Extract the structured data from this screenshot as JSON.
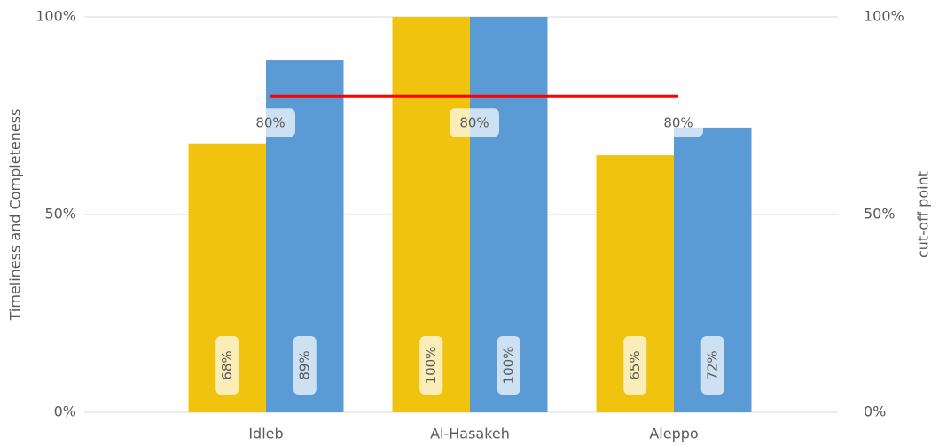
{
  "chart_data": {
    "type": "bar",
    "categories": [
      "Idleb",
      "Al-Hasakeh",
      "Aleppo"
    ],
    "series": [
      {
        "color": "#f0c30f",
        "values": [
          68,
          100,
          65
        ],
        "value_labels": [
          "68%",
          "100%",
          "65%"
        ]
      },
      {
        "color": "#5b9bd5",
        "values": [
          89,
          100,
          72
        ],
        "value_labels": [
          "89%",
          "100%",
          "72%"
        ]
      },
      {
        "name": "cut-off point",
        "type": "line",
        "axis": "y2",
        "color": "#ff0000",
        "values": [
          80,
          80,
          80
        ],
        "value_labels": [
          "80%",
          "80%",
          "80%"
        ]
      }
    ],
    "y_label": "Timeliness and Completeness",
    "y2_label": "cut-off point",
    "ylim": [
      0,
      100
    ],
    "yticks": [
      {
        "value": 0,
        "label": "0%"
      },
      {
        "value": 50,
        "label": "50%"
      },
      {
        "value": 100,
        "label": "100%"
      }
    ],
    "y2lim": [
      0,
      100
    ],
    "y2ticks": [
      {
        "value": 0,
        "label": "0%"
      },
      {
        "value": 50,
        "label": "50%"
      },
      {
        "value": 100,
        "label": "100%"
      }
    ],
    "grid": true
  }
}
